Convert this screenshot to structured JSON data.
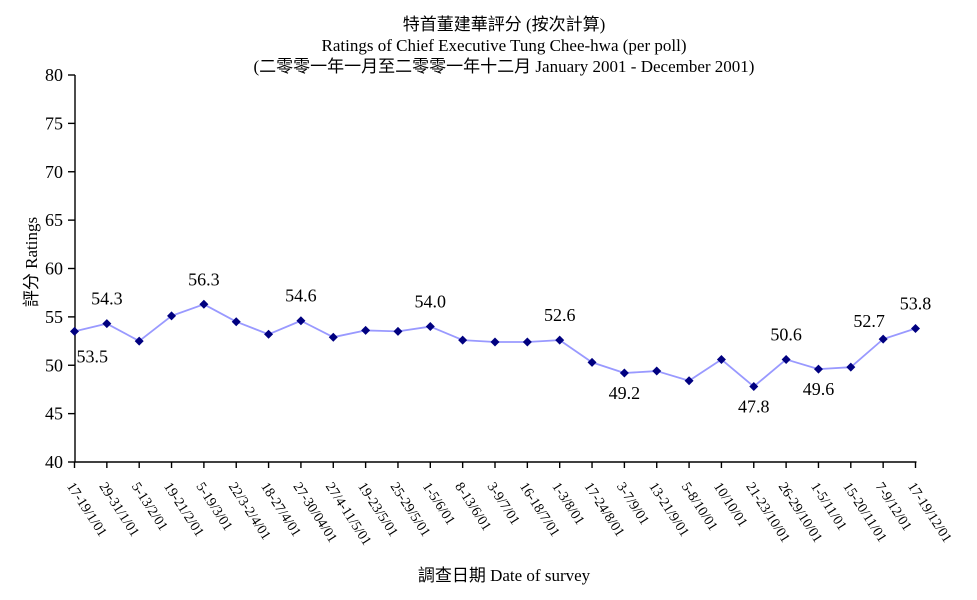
{
  "chart_data": {
    "type": "line",
    "title_zh": "特首董建華評分 (按次計算)",
    "title_en": "Ratings of Chief Executive Tung Chee-hwa (per poll)",
    "subtitle": "(二零零一年一月至二零零一年十二月 January 2001 - December 2001)",
    "xlabel": "調查日期 Date of survey",
    "ylabel": "評分 Ratings",
    "ylim": [
      40,
      80
    ],
    "yticks": [
      40,
      45,
      50,
      55,
      60,
      65,
      70,
      75,
      80
    ],
    "grid": false,
    "legend": "none",
    "categories": [
      "17-19/1/01",
      "29-31/1/01",
      "5-13/2/01",
      "19-21/2/01",
      "5-19/3/01",
      "22/3-2/4/01",
      "18-27/4/01",
      "27-30/04/01",
      "27/4-11/5/01",
      "19-23/5/01",
      "25-29/5/01",
      "1-5/6/01",
      "8-13/6/01",
      "3-9/7/01",
      "16-18/7/01",
      "1-3/8/01",
      "17-24/8/01",
      "3-7/9/01",
      "13-21/9/01",
      "5-8/10/01",
      "10/10/01",
      "21-23/10/01",
      "26-29/10/01",
      "1-5/11/01",
      "15-20/11/01",
      "7-9/12/01",
      "17-19/12/01"
    ],
    "series": [
      {
        "name": "Ratings of Chief Executive Tung Chee-hwa",
        "values": [
          53.5,
          54.3,
          52.5,
          55.1,
          56.3,
          54.5,
          53.2,
          54.6,
          52.9,
          53.6,
          53.5,
          54.0,
          52.6,
          52.4,
          52.4,
          52.6,
          50.3,
          49.2,
          49.4,
          48.4,
          50.6,
          47.8,
          50.6,
          49.6,
          49.8,
          52.7,
          53.8
        ]
      }
    ],
    "point_labels": [
      {
        "index": 0,
        "text": "53.5",
        "pos": "below-right"
      },
      {
        "index": 1,
        "text": "54.3",
        "pos": "above"
      },
      {
        "index": 4,
        "text": "56.3",
        "pos": "above"
      },
      {
        "index": 7,
        "text": "54.6",
        "pos": "above"
      },
      {
        "index": 11,
        "text": "54.0",
        "pos": "above"
      },
      {
        "index": 15,
        "text": "52.6",
        "pos": "above"
      },
      {
        "index": 17,
        "text": "49.2",
        "pos": "below"
      },
      {
        "index": 21,
        "text": "47.8",
        "pos": "below"
      },
      {
        "index": 22,
        "text": "50.6",
        "pos": "above"
      },
      {
        "index": 23,
        "text": "49.6",
        "pos": "below"
      },
      {
        "index": 25,
        "text": "52.7",
        "pos": "above-left"
      },
      {
        "index": 26,
        "text": "53.8",
        "pos": "above"
      }
    ],
    "colors": {
      "line": "#9999FF",
      "marker": "#000080",
      "axis": "#000000",
      "text": "#000000",
      "background": "#FFFFFF"
    },
    "marker_shape": "diamond"
  }
}
